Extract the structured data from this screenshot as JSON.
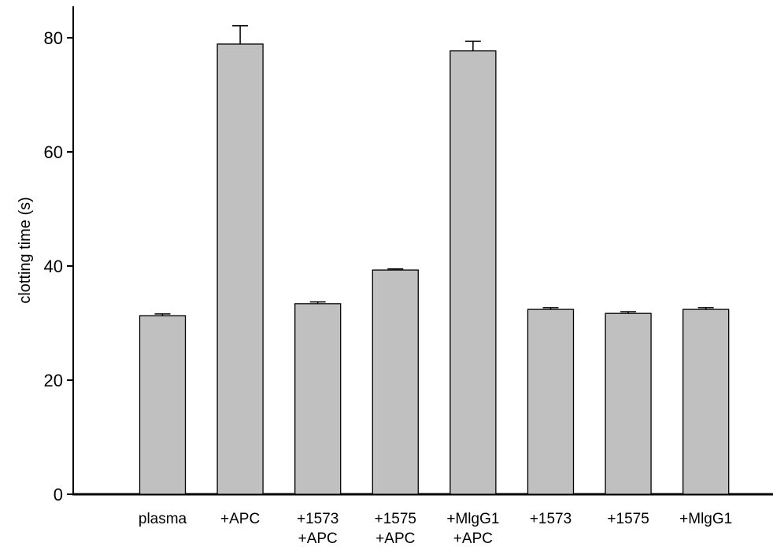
{
  "chart_data": {
    "type": "bar",
    "title": "",
    "xlabel": "",
    "ylabel": "clotting time (s)",
    "ylim": [
      0,
      86
    ],
    "yticks": [
      0,
      20,
      40,
      60,
      80
    ],
    "grid": false,
    "legend": "none",
    "categories": [
      [
        "plasma"
      ],
      [
        "+APC"
      ],
      [
        "+1573",
        "+APC"
      ],
      [
        "+1575",
        "+APC"
      ],
      [
        "+MlgG1",
        "+APC"
      ],
      [
        "+1573"
      ],
      [
        "+1575"
      ],
      [
        "+MlgG1"
      ]
    ],
    "series": [
      {
        "values": [
          31.3,
          78.9,
          33.4,
          39.3,
          77.7,
          32.4,
          31.7,
          32.4
        ],
        "errors": [
          0.3,
          3.2,
          0.3,
          0.2,
          1.7,
          0.3,
          0.3,
          0.3
        ],
        "color": "#c0c0c0"
      }
    ]
  }
}
